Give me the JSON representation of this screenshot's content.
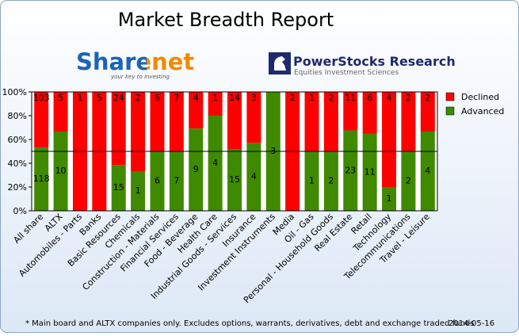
{
  "chart_data": {
    "type": "stacked_percent",
    "title": "Market Breadth Report",
    "logo_left": {
      "name": "Sharenet",
      "tagline": "your key to investing"
    },
    "logo_right": {
      "name": "PowerStocks Research",
      "tagline": "Equities Investment Sciences"
    },
    "categories": [
      "All share",
      "ALTX",
      "Automobiles - Parts",
      "Banks",
      "Basic Resources",
      "Chemicals",
      "Construction - Materials",
      "Financial Services",
      "Food - Beverage",
      "Health Care",
      "Industrial Goods - Services",
      "Insurance",
      "Investment Instruments",
      "Media",
      "Oil - Gas",
      "Personal - Household Goods",
      "Real Estate",
      "Retail",
      "Technology",
      "Telecommunications",
      "Travel - Leisure"
    ],
    "series": [
      {
        "name": "Advanced",
        "color": "#3f8a00",
        "values": [
          118,
          10,
          0,
          0,
          15,
          1,
          6,
          7,
          9,
          4,
          15,
          4,
          3,
          0,
          1,
          2,
          23,
          11,
          1,
          2,
          4
        ]
      },
      {
        "name": "Declined",
        "color": "#ff0000",
        "values": [
          103,
          5,
          1,
          5,
          24,
          2,
          6,
          7,
          4,
          1,
          14,
          3,
          0,
          2,
          1,
          2,
          11,
          6,
          4,
          2,
          2
        ]
      }
    ],
    "ylim": [
      0,
      100
    ],
    "yticks": [
      {
        "value": 0,
        "label": "0%"
      },
      {
        "value": 20,
        "label": "20%"
      },
      {
        "value": 40,
        "label": "40%"
      },
      {
        "value": 60,
        "label": "60%"
      },
      {
        "value": 80,
        "label": "80%"
      },
      {
        "value": 100,
        "label": "100%"
      }
    ],
    "reference_line": 50,
    "legend": "right",
    "footnote": "* Main board and ALTX companies only. Excludes options, warrants, derivatives, debt and exchange traded funds",
    "date": "2014-05-16"
  }
}
